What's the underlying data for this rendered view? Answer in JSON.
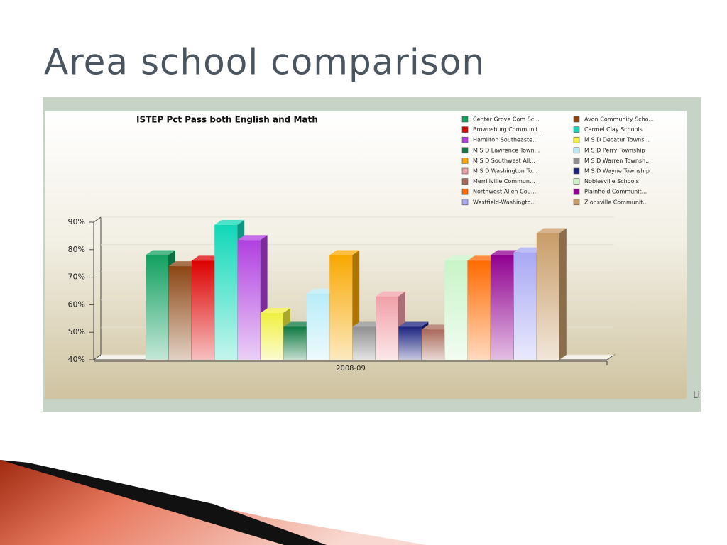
{
  "slide_title": "Area school comparison",
  "chart_data": {
    "type": "bar",
    "title": "ISTEP Pct Pass both English and Math",
    "categories": [
      "2008-09"
    ],
    "series": [
      {
        "name": "Center Grove Com Sc...",
        "color": "#12a060",
        "values": [
          78
        ]
      },
      {
        "name": "Avon Community Scho...",
        "color": "#8b4513",
        "values": [
          74
        ]
      },
      {
        "name": "Brownsburg Communit...",
        "color": "#dd0000",
        "values": [
          76
        ]
      },
      {
        "name": "Carmel Clay Schools",
        "color": "#10d8b8",
        "values": [
          89
        ]
      },
      {
        "name": "Hamilton Southeaste...",
        "color": "#b040e0",
        "values": [
          83.5
        ]
      },
      {
        "name": "M S D Decatur Towns...",
        "color": "#f0f040",
        "values": [
          57
        ]
      },
      {
        "name": "M S D Lawrence Town...",
        "color": "#0f7a40",
        "values": [
          52
        ]
      },
      {
        "name": "M S D Perry Township",
        "color": "#b8ecf8",
        "values": [
          64
        ]
      },
      {
        "name": "M S D Southwest All...",
        "color": "#f8a800",
        "values": [
          78
        ]
      },
      {
        "name": "M S D Warren Townsh...",
        "color": "#909090",
        "values": [
          52
        ]
      },
      {
        "name": "M S D Washington To...",
        "color": "#f0a0a8",
        "values": [
          63
        ]
      },
      {
        "name": "M S D Wayne Township",
        "color": "#1c2480",
        "values": [
          52
        ]
      },
      {
        "name": "Merrillville Commun...",
        "color": "#a86858",
        "values": [
          51
        ]
      },
      {
        "name": "Noblesville Schools",
        "color": "#c8f4c8",
        "values": [
          76
        ]
      },
      {
        "name": "Northwest Allen Cou...",
        "color": "#ff6a00",
        "values": [
          76
        ]
      },
      {
        "name": "Plainfield Communit...",
        "color": "#900090",
        "values": [
          78
        ]
      },
      {
        "name": "Westfield-Washingto...",
        "color": "#a8a8f4",
        "values": [
          79
        ]
      },
      {
        "name": "Zionsville Communit...",
        "color": "#c89c68",
        "values": [
          86
        ]
      }
    ],
    "ylim": [
      40,
      90
    ],
    "yticks": [
      {
        "value": 40,
        "label": "40%"
      },
      {
        "value": 50,
        "label": "50%"
      },
      {
        "value": 60,
        "label": "60%"
      },
      {
        "value": 70,
        "label": "70%"
      },
      {
        "value": 80,
        "label": "80%"
      },
      {
        "value": 90,
        "label": "90%"
      }
    ],
    "grid": true,
    "note": "Li"
  }
}
